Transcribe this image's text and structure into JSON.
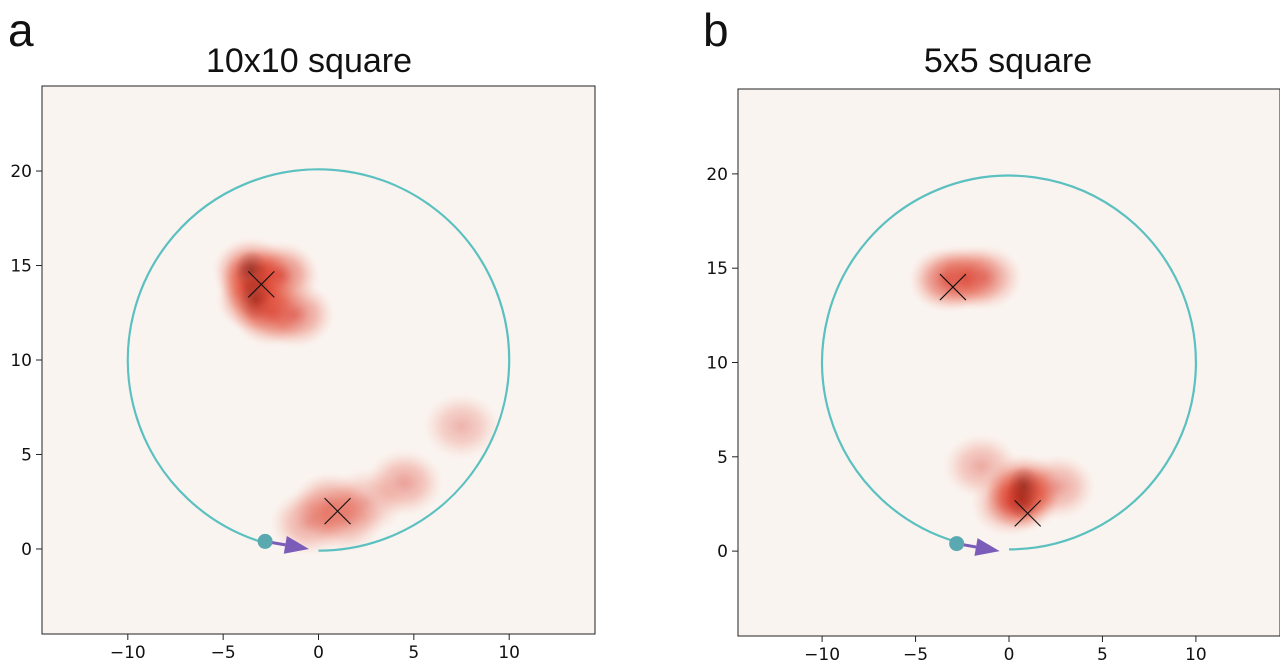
{
  "panels": [
    {
      "letter": "a",
      "title": "10x10 square"
    },
    {
      "letter": "b",
      "title": "5x5 square"
    }
  ],
  "chart_data": [
    {
      "type": "heatmap",
      "title": "10x10 square",
      "xlabel": "",
      "ylabel": "",
      "xlim": [
        -14.5,
        14.5
      ],
      "ylim": [
        -4.5,
        24.5
      ],
      "x_ticks": [
        -10,
        -5,
        0,
        5,
        10
      ],
      "y_ticks": [
        0,
        5,
        10,
        15,
        20
      ],
      "x_tick_labels": [
        "−10",
        "−5",
        "0",
        "5",
        "10"
      ],
      "y_tick_labels": [
        "0",
        "5",
        "10",
        "15",
        "20"
      ],
      "circle": {
        "center": [
          0,
          10
        ],
        "radius": 10,
        "color": "#5bc0c0"
      },
      "start_point": {
        "x": -2.8,
        "y": 0.4,
        "color": "#5aa8b0"
      },
      "arrow": {
        "from": [
          -2.8,
          0.4
        ],
        "to": [
          -0.5,
          0
        ],
        "color": "#7b5cb8"
      },
      "markers_x": [
        [
          -3,
          14
        ],
        [
          1,
          2
        ]
      ],
      "heat_blobs": [
        {
          "x": -3.2,
          "y": 14.0,
          "intensity": 1.0
        },
        {
          "x": -3.5,
          "y": 14.7,
          "intensity": 0.85
        },
        {
          "x": -2.0,
          "y": 14.5,
          "intensity": 0.7
        },
        {
          "x": -3.3,
          "y": 13.2,
          "intensity": 0.8
        },
        {
          "x": -2.5,
          "y": 12.5,
          "intensity": 0.75
        },
        {
          "x": -1.2,
          "y": 12.4,
          "intensity": 0.6
        },
        {
          "x": 0.6,
          "y": 2.3,
          "intensity": 0.55
        },
        {
          "x": 1.4,
          "y": 1.6,
          "intensity": 0.45
        },
        {
          "x": -0.5,
          "y": 1.4,
          "intensity": 0.45
        },
        {
          "x": 2.5,
          "y": 2.5,
          "intensity": 0.35
        },
        {
          "x": 4.5,
          "y": 3.5,
          "intensity": 0.45
        },
        {
          "x": 7.5,
          "y": 6.5,
          "intensity": 0.35
        }
      ],
      "background_color": "#faf4f0"
    },
    {
      "type": "heatmap",
      "title": "5x5 square",
      "xlabel": "",
      "ylabel": "",
      "xlim": [
        -14.5,
        14.5
      ],
      "ylim": [
        -4.5,
        24.5
      ],
      "x_ticks": [
        -10,
        -5,
        0,
        5,
        10
      ],
      "y_ticks": [
        0,
        5,
        10,
        15,
        20
      ],
      "x_tick_labels": [
        "−10",
        "−5",
        "0",
        "5",
        "10"
      ],
      "y_tick_labels": [
        "0",
        "5",
        "10",
        "15",
        "20"
      ],
      "circle": {
        "center": [
          0,
          10
        ],
        "radius": 10,
        "color": "#5bc0c0"
      },
      "start_point": {
        "x": -2.8,
        "y": 0.4,
        "color": "#5aa8b0"
      },
      "arrow": {
        "from": [
          -2.8,
          0.4
        ],
        "to": [
          -0.5,
          0
        ],
        "color": "#7b5cb8"
      },
      "markers_x": [
        [
          -3,
          14
        ],
        [
          1,
          2
        ]
      ],
      "heat_blobs": [
        {
          "x": -3.3,
          "y": 14.4,
          "intensity": 0.75
        },
        {
          "x": -2.3,
          "y": 14.5,
          "intensity": 0.65
        },
        {
          "x": -1.3,
          "y": 14.5,
          "intensity": 0.55
        },
        {
          "x": 0.7,
          "y": 2.8,
          "intensity": 1.0
        },
        {
          "x": 0.8,
          "y": 3.4,
          "intensity": 0.8
        },
        {
          "x": 0.0,
          "y": 2.5,
          "intensity": 0.5
        },
        {
          "x": -1.5,
          "y": 4.5,
          "intensity": 0.4
        },
        {
          "x": 2.6,
          "y": 3.4,
          "intensity": 0.45
        }
      ],
      "background_color": "#faf4f0"
    }
  ]
}
